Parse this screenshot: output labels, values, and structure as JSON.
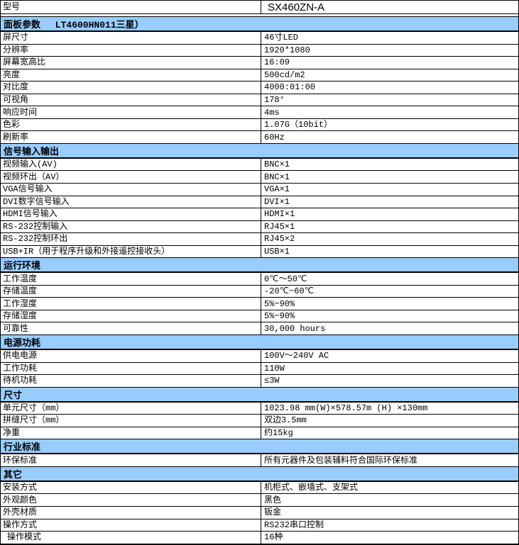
{
  "table": {
    "colors": {
      "section_background": "#99CCFF",
      "grid_border": "#000000",
      "background": "#FFFFFF",
      "text": "#000000"
    },
    "model_row": {
      "label": "型号",
      "value": "SX460ZN-A"
    },
    "sections": [
      {
        "title": "面板参数　 LT4600HN011三星）",
        "rows": [
          {
            "label": "屏尺寸",
            "value": "46寸LED"
          },
          {
            "label": "分辨率",
            "value": "1920*1080"
          },
          {
            "label": "屏幕宽高比",
            "value": "16:09"
          },
          {
            "label": "亮度",
            "value": "500cd/m2"
          },
          {
            "label": "对比度",
            "value": "4000:01:00"
          },
          {
            "label": "可视角",
            "value": "178°"
          },
          {
            "label": "响应时间",
            "value": "4ms"
          },
          {
            "label": "色彩",
            "value": "1.07G（10bit）"
          },
          {
            "label": "刷新率",
            "value": "60Hz"
          }
        ]
      },
      {
        "title": "信号输入输出",
        "rows": [
          {
            "label": "视频输入(AV)",
            "value": "BNC×1"
          },
          {
            "label": "视频环出（AV）",
            "value": "BNC×1"
          },
          {
            "label": "VGA信号输入",
            "value": "VGA×1"
          },
          {
            "label": "DVI数字信号输入",
            "value": "DVI×1"
          },
          {
            "label": "HDMI信号输入",
            "value": "HDMI×1"
          },
          {
            "label": "RS-232控制输入",
            "value": "RJ45×1"
          },
          {
            "label": "RS-232控制环出",
            "value": "RJ45×2"
          },
          {
            "label": "USB+IR（用于程序升级和外接遥控接收头）",
            "value": "USB×1"
          }
        ]
      },
      {
        "title": "运行环境",
        "rows": [
          {
            "label": "工作温度",
            "value": "0℃～50℃"
          },
          {
            "label": "存储温度",
            "value": "-20℃~60℃"
          },
          {
            "label": "工作湿度",
            "value": "5%~90%"
          },
          {
            "label": "存储湿度",
            "value": "5%~90%"
          },
          {
            "label": "可靠性",
            "value": "30,000 hours"
          }
        ]
      },
      {
        "title": "电源功耗",
        "rows": [
          {
            "label": "供电电源",
            "value": "100V～240V AC"
          },
          {
            "label": "工作功耗",
            "value": "110W"
          },
          {
            "label": "待机功耗",
            "value": "≤3W"
          }
        ]
      },
      {
        "title": "尺寸",
        "rows": [
          {
            "label": "单元尺寸（mm）",
            "value": "1023.98 mm(W)×578.57m (H) ×130mm"
          },
          {
            "label": "拼缝尺寸（mm）",
            "value": "双边3.5mm"
          },
          {
            "label": "净重",
            "value": "约15kg"
          }
        ]
      },
      {
        "title": "行业标准",
        "rows": [
          {
            "label": "环保标准",
            "value": "所有元器件及包装辅料符合国际环保标准"
          }
        ]
      },
      {
        "title": "其它",
        "rows": [
          {
            "label": "安装方式",
            "value": "机柜式、嵌墙式、支架式"
          },
          {
            "label": "外观颜色",
            "value": "黑色"
          },
          {
            "label": "外壳材质",
            "value": "钣金"
          },
          {
            "label": "操作方式",
            "value": "RS232串口控制"
          },
          {
            "label": "操作模式",
            "value": "16种",
            "indent": true
          }
        ]
      }
    ]
  }
}
